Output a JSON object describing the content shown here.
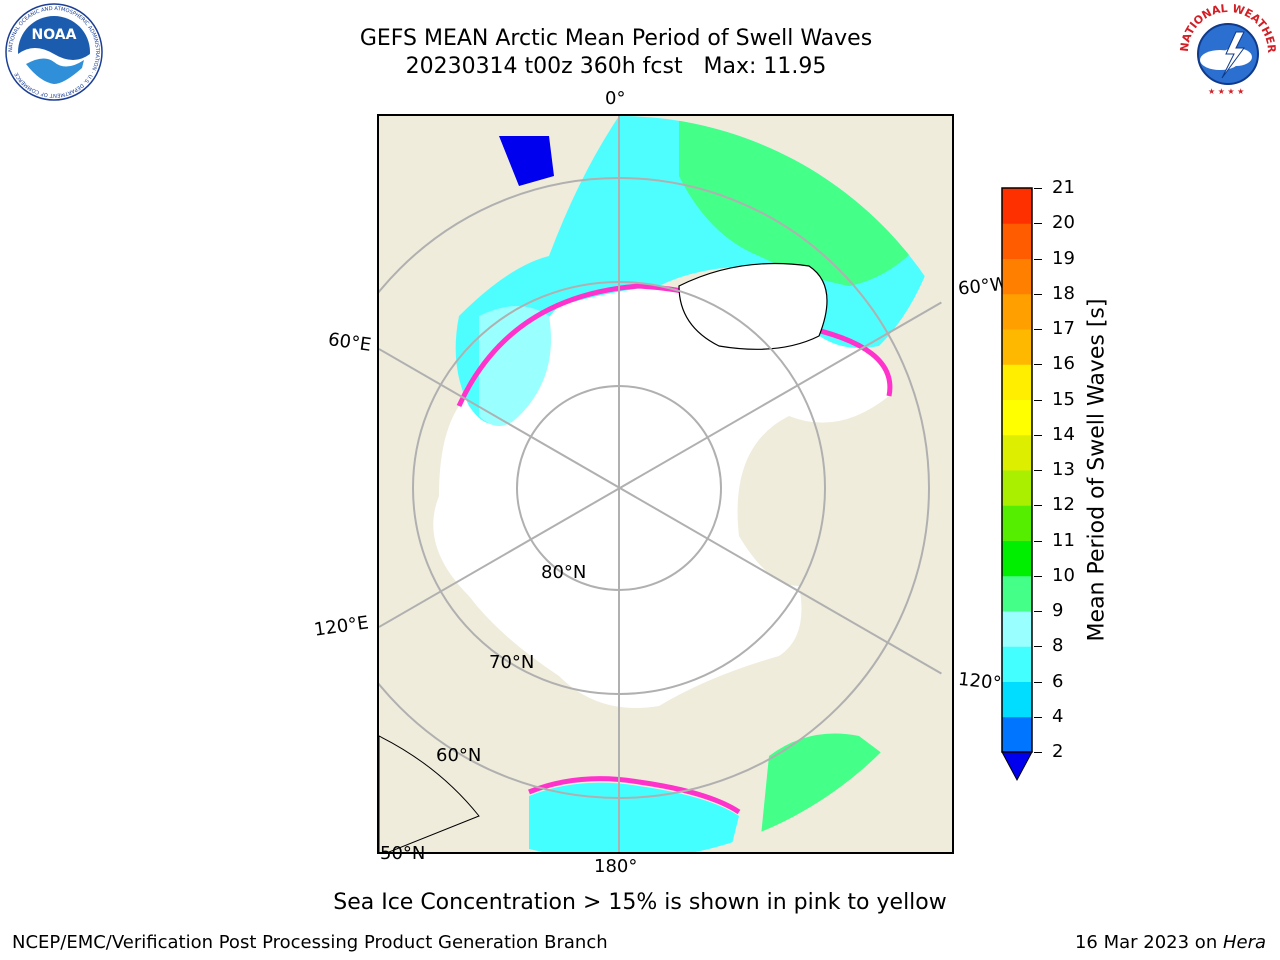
{
  "header": {
    "title_line1": "GEFS MEAN Arctic Mean Period of Swell Waves",
    "title_line2": "20230314 t00z 360h fcst   Max: 11.95"
  },
  "logos": {
    "noaa_text": "NOAA",
    "noaa_ring_text": "NATIONAL OCEANIC AND ATMOSPHERIC ADMINISTRATION · U.S. DEPARTMENT OF COMMERCE",
    "nws_ring_text": "NATIONAL WEATHER SERVICE"
  },
  "map": {
    "projection": "north-polar-stereographic",
    "lon_labels": {
      "lon_0": "0°",
      "lon_60w": "60°W",
      "lon_60e": "60°E",
      "lon_120e": "120°E",
      "lon_120w": "120°W",
      "lon_180": "180°"
    },
    "lat_labels": {
      "lat_80": "80°N",
      "lat_70": "70°N",
      "lat_60": "60°N",
      "lat_50": "50°N"
    },
    "colors": {
      "land": "#efecdc",
      "ice": "#ffffff",
      "grid": "#b0b0b0",
      "ice_edge": [
        "#ff33cc",
        "#ff66aa",
        "#ffaa33",
        "#ffee00"
      ]
    }
  },
  "colorbar": {
    "title": "Mean Period of Swell Waves [s]",
    "ticks": [
      "2",
      "4",
      "6",
      "8",
      "9",
      "10",
      "11",
      "12",
      "13",
      "14",
      "15",
      "16",
      "17",
      "18",
      "19",
      "20",
      "21"
    ],
    "colors": [
      "#0075ff",
      "#00ddff",
      "#44ffff",
      "#99ffff",
      "#44ff88",
      "#00ee00",
      "#55ee00",
      "#aaee00",
      "#ddee00",
      "#ffff00",
      "#ffee00",
      "#ffb800",
      "#ffa000",
      "#ff8000",
      "#ff5c00",
      "#ff3000"
    ],
    "underflow_color": "#0000ee"
  },
  "footer": {
    "note": "Sea Ice Concentration > 15% is shown in pink to yellow",
    "credit": "NCEP/EMC/Verification Post Processing Product Generation Branch",
    "date_prefix": "16 Mar 2023 on ",
    "date_host": "Hera"
  }
}
